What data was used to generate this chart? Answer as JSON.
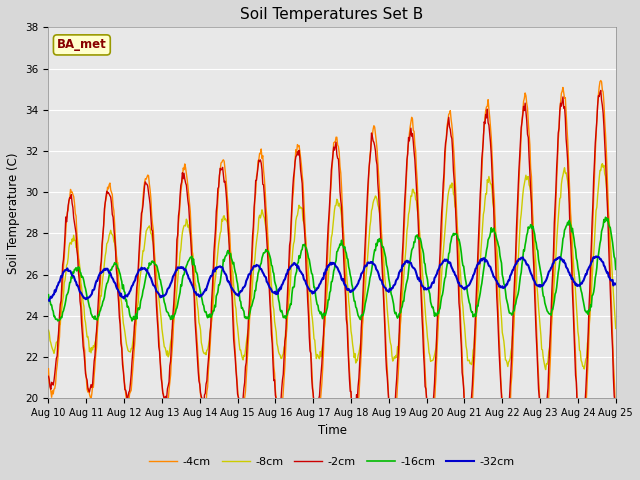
{
  "title": "Soil Temperatures Set B",
  "xlabel": "Time",
  "ylabel": "Soil Temperature (C)",
  "ylim": [
    20,
    38
  ],
  "xlim": [
    0,
    360
  ],
  "annotation": "BA_met",
  "x_tick_labels": [
    "Aug 10",
    "Aug 11",
    "Aug 12",
    "Aug 13",
    "Aug 14",
    "Aug 15",
    "Aug 16",
    "Aug 17",
    "Aug 18",
    "Aug 19",
    "Aug 20",
    "Aug 21",
    "Aug 22",
    "Aug 23",
    "Aug 24",
    "Aug 25"
  ],
  "legend_labels": [
    "-2cm",
    "-4cm",
    "-8cm",
    "-16cm",
    "-32cm"
  ],
  "legend_colors": [
    "#cc0000",
    "#ff8800",
    "#cccc00",
    "#00bb00",
    "#0000cc"
  ],
  "line_widths": [
    1.0,
    1.0,
    1.0,
    1.2,
    1.5
  ],
  "fig_bg_color": "#d8d8d8",
  "plot_bg_color": "#e8e8e8",
  "n_points": 721
}
